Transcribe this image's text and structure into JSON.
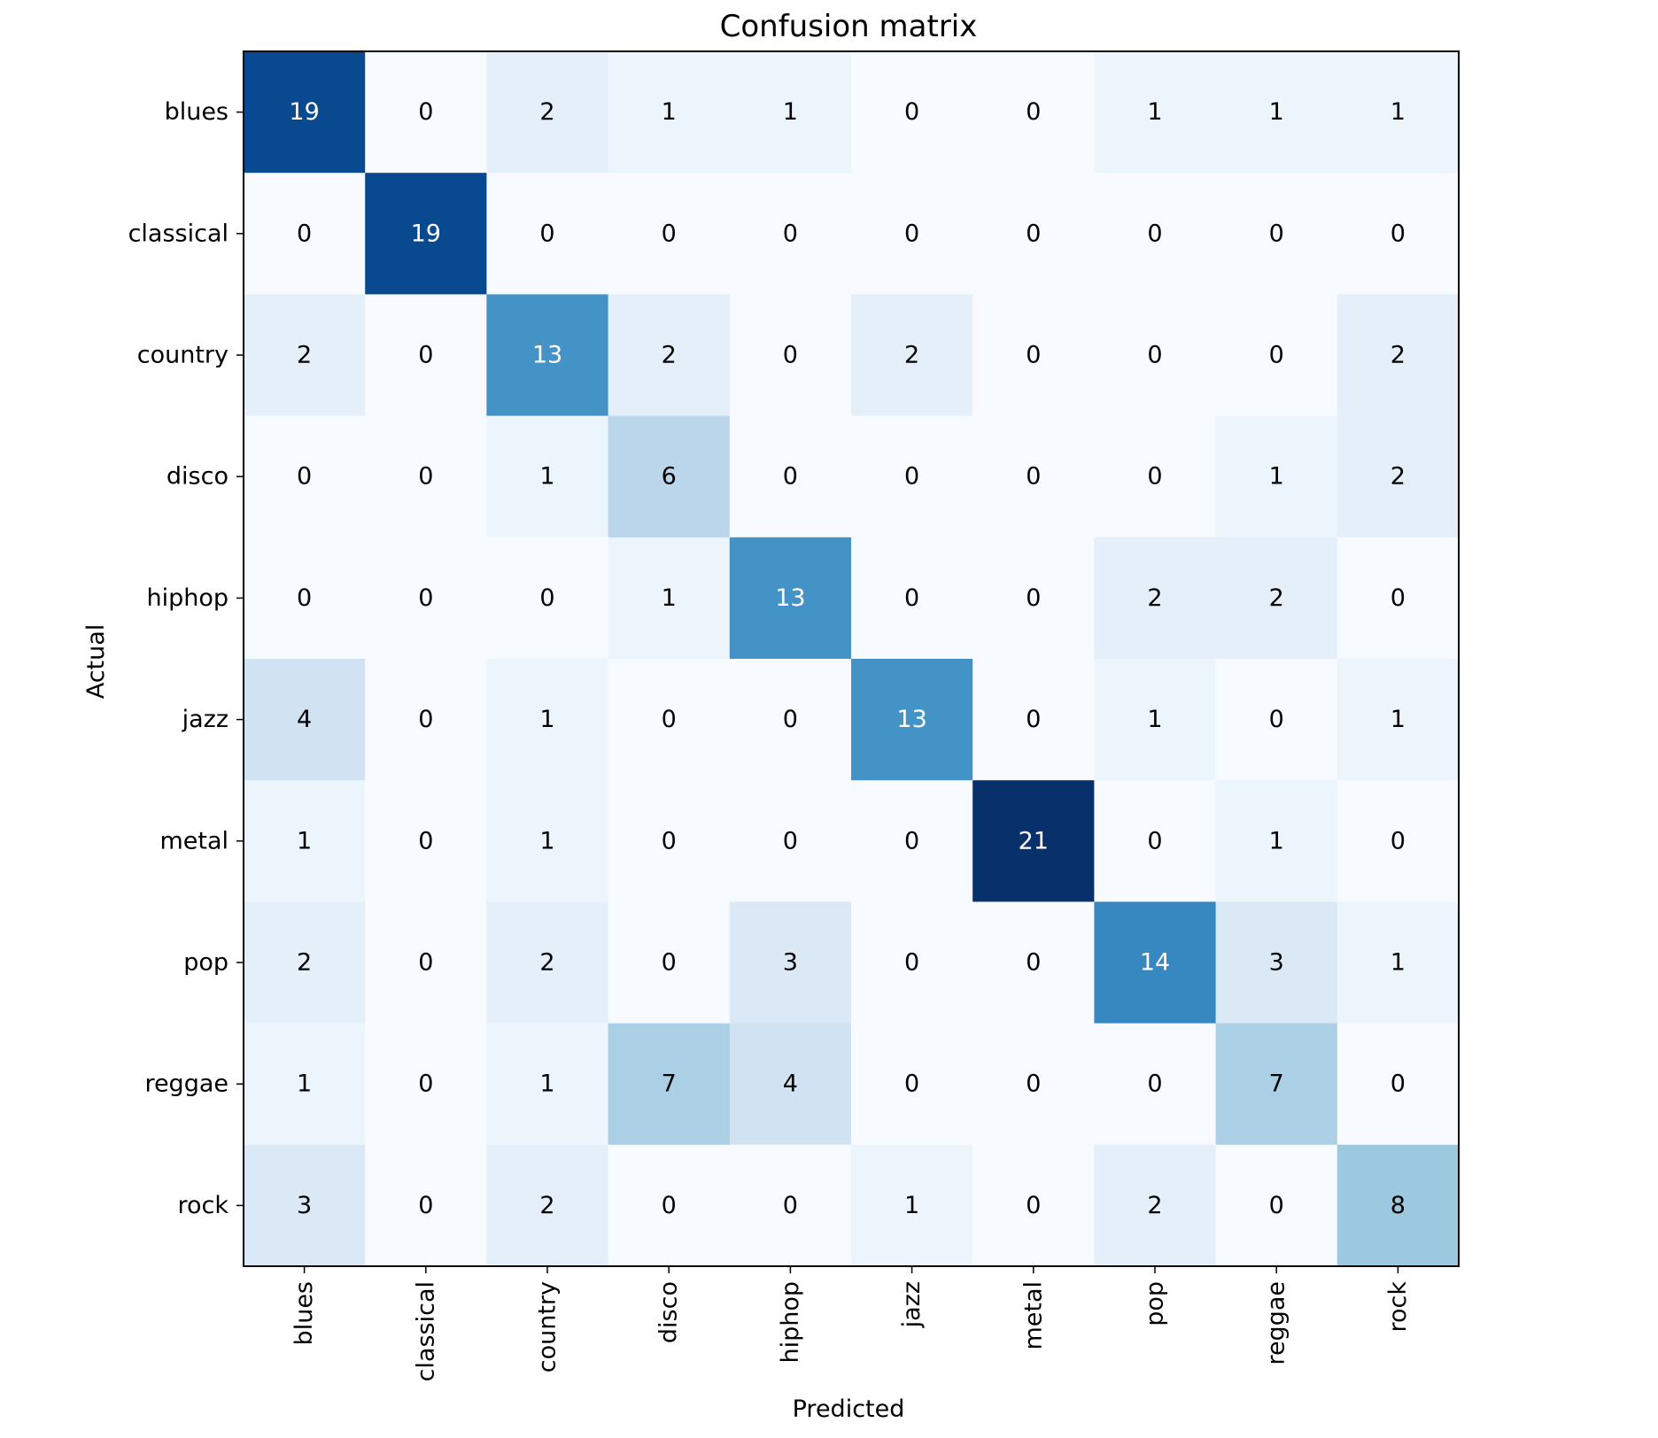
{
  "chart_data": {
    "type": "heatmap",
    "title": "Confusion matrix",
    "xlabel": "Predicted",
    "ylabel": "Actual",
    "x_categories": [
      "blues",
      "classical",
      "country",
      "disco",
      "hiphop",
      "jazz",
      "metal",
      "pop",
      "reggae",
      "rock"
    ],
    "y_categories": [
      "blues",
      "classical",
      "country",
      "disco",
      "hiphop",
      "jazz",
      "metal",
      "pop",
      "reggae",
      "rock"
    ],
    "values": [
      [
        19,
        0,
        2,
        1,
        1,
        0,
        0,
        1,
        1,
        1
      ],
      [
        0,
        19,
        0,
        0,
        0,
        0,
        0,
        0,
        0,
        0
      ],
      [
        2,
        0,
        13,
        2,
        0,
        2,
        0,
        0,
        0,
        2
      ],
      [
        0,
        0,
        1,
        6,
        0,
        0,
        0,
        0,
        1,
        2
      ],
      [
        0,
        0,
        0,
        1,
        13,
        0,
        0,
        2,
        2,
        0
      ],
      [
        4,
        0,
        1,
        0,
        0,
        13,
        0,
        1,
        0,
        1
      ],
      [
        1,
        0,
        1,
        0,
        0,
        0,
        21,
        0,
        1,
        0
      ],
      [
        2,
        0,
        2,
        0,
        3,
        0,
        0,
        14,
        3,
        1
      ],
      [
        1,
        0,
        1,
        7,
        4,
        0,
        0,
        0,
        7,
        0
      ],
      [
        3,
        0,
        2,
        0,
        0,
        1,
        0,
        2,
        0,
        8
      ]
    ],
    "colormap": "Blues",
    "color_low": "#f7fbff",
    "color_high": "#08306b",
    "text_color_dark": "#000000",
    "text_color_light": "#ffffff",
    "grid": false
  }
}
